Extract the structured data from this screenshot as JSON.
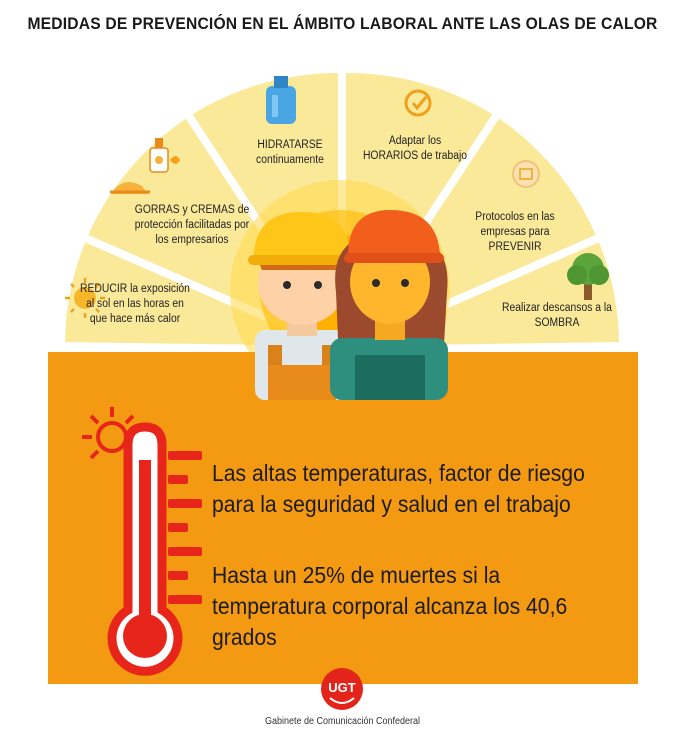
{
  "header": {
    "title": "MEDIDAS DE PREVENCIÓN EN EL ÁMBITO LABORAL ANTE LAS OLAS DE CALOR"
  },
  "measures": [
    {
      "label": "REDUCIR la exposición al sol en las horas en que hace más calor",
      "icon": "sun-icon"
    },
    {
      "label": "GORRAS y CREMAS de protección facilitadas por los empresarios",
      "icon": "cap-cream-icon"
    },
    {
      "label": "HIDRATARSE continuamente",
      "icon": "water-bottle-icon"
    },
    {
      "label": "Adaptar los HORARIOS de trabajo",
      "icon": "clock-check-icon"
    },
    {
      "label": "Protocolos en las empresas para PREVENIR",
      "icon": "protocol-icon"
    },
    {
      "label": "Realizar descansos a la SOMBRA",
      "icon": "tree-icon"
    }
  ],
  "main": {
    "message_1": "Las altas temperaturas, factor de riesgo para la seguridad y salud en el trabajo",
    "message_2": "Hasta un 25% de muertes si la temperatura corporal alcanza los 40,6 grados"
  },
  "footer": {
    "logo_text": "UGT",
    "caption": "Gabinete de Comunicación Confederal"
  },
  "colors": {
    "fan_fill": "#fbe99a",
    "panel": "#f39a12",
    "thermometer": "#e8251b",
    "logo": "#e3241b"
  }
}
